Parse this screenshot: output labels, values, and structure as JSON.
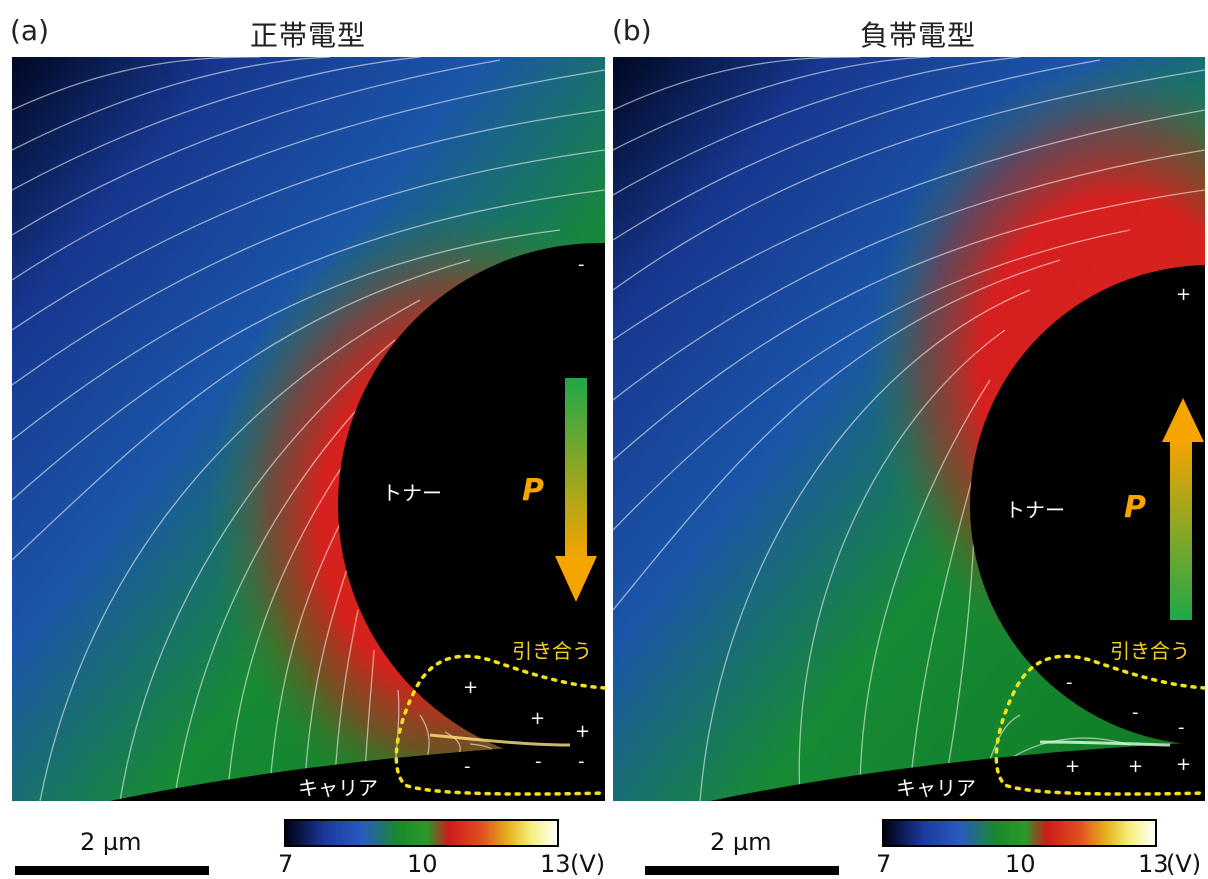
{
  "panels": [
    {
      "letter": "(a)",
      "title": "正帯電型",
      "toner_label": "トナー",
      "carrier_label": "キャリア",
      "attract_label": "引き合う",
      "polarization_label": "P",
      "polarization_direction": "down",
      "toner_charges": [
        "-"
      ],
      "gap_charges_top": [
        "+",
        "+",
        "+"
      ],
      "gap_charges_bottom": [
        "-",
        "-",
        "-"
      ]
    },
    {
      "letter": "(b)",
      "title": "負帯電型",
      "toner_label": "トナー",
      "carrier_label": "キャリア",
      "attract_label": "引き合う",
      "polarization_label": "P",
      "polarization_direction": "up",
      "toner_charges": [
        "+"
      ],
      "gap_charges_top": [
        "-",
        "-",
        "-"
      ],
      "gap_charges_bottom": [
        "+",
        "+",
        "+"
      ]
    }
  ],
  "scale_bar": {
    "label": "2 µm"
  },
  "colorbar": {
    "ticks": [
      "7",
      "10",
      "13"
    ],
    "unit": "(V)",
    "colors": [
      "#000010",
      "#1c3a9e",
      "#1a8a2a",
      "#cc1b1b",
      "#e6b21e",
      "#f5ee7a",
      "#ffffff"
    ]
  },
  "colors": {
    "label_yellow": "#f3d21a",
    "arrow_orange": "#f6a400",
    "arrow_green": "#1fa84a"
  }
}
